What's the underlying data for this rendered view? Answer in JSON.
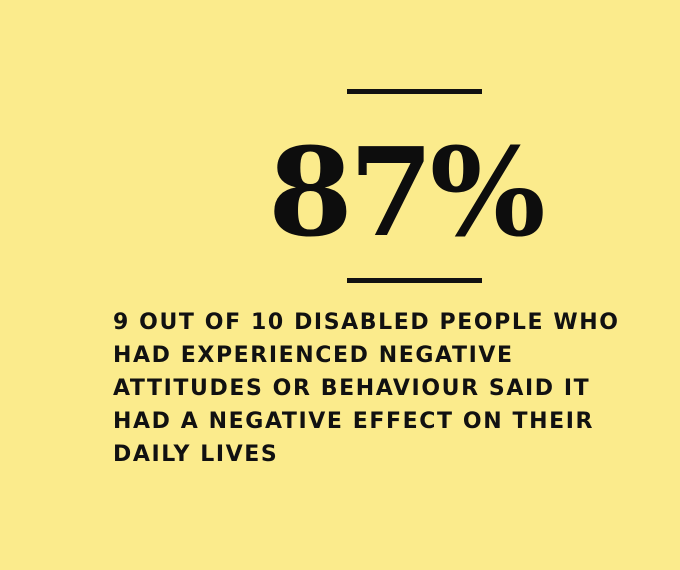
{
  "background_color": "#fbeb8c",
  "text_color": "#111111",
  "stat": {
    "value": "87%"
  },
  "caption": {
    "text": "9 OUT OF 10 DISABLED PEOPLE WHO HAD EXPERIENCED NEGATIVE ATTITUDES OR BEHAVIOUR SAID IT HAD A NEGATIVE EFFECT ON THEIR DAILY LIVES"
  }
}
